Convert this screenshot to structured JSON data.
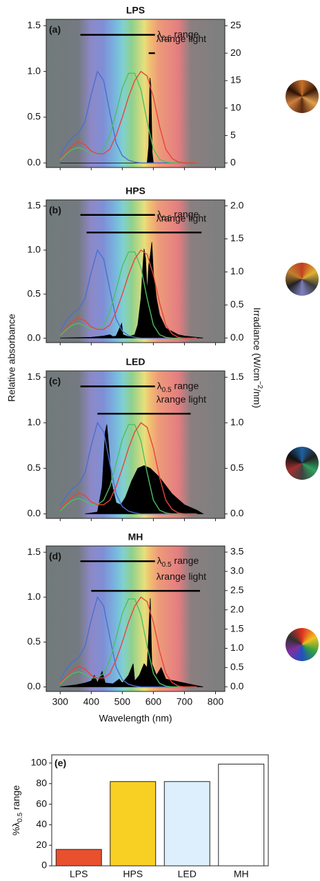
{
  "chart_data": [
    {
      "type": "line",
      "title": "LPS",
      "panel_label": "(a)",
      "xlim": [
        255,
        830
      ],
      "xticks": [
        300,
        400,
        500,
        600,
        700,
        800
      ],
      "ylim": [
        -0.05,
        1.57
      ],
      "yticks": [
        {
          "value": 0,
          "label": "0.0"
        },
        0.5,
        {
          "value": 1,
          "label": "1.0"
        },
        1.5
      ],
      "y2lim": [
        -0.83,
        26.17
      ],
      "y2ticks": [
        0,
        5,
        10,
        15,
        20,
        25
      ],
      "x": [
        300,
        320,
        340,
        360,
        380,
        400,
        420,
        440,
        460,
        480,
        500,
        520,
        540,
        560,
        580,
        600,
        620,
        640,
        660,
        680,
        700,
        720,
        740
      ],
      "series": [
        {
          "color": "#000000",
          "axis": "y2",
          "fill": true,
          "x": [
            300,
            580,
            585,
            589,
            592,
            596,
            600,
            740
          ],
          "values": [
            0,
            0,
            3,
            15.5,
            14,
            2,
            0,
            0
          ]
        },
        {
          "color": "#4a6fd0",
          "values": [
            0.08,
            0.2,
            0.28,
            0.33,
            0.45,
            0.75,
            1.0,
            0.9,
            0.55,
            0.22,
            0.08,
            0.03,
            0.01,
            0,
            0,
            0,
            0,
            0,
            0,
            0,
            0,
            0,
            0
          ]
        },
        {
          "color": "#4cc060",
          "values": [
            0.03,
            0.1,
            0.15,
            0.17,
            0.14,
            0.1,
            0.1,
            0.15,
            0.3,
            0.55,
            0.82,
            0.98,
            0.98,
            0.8,
            0.45,
            0.15,
            0.04,
            0.01,
            0,
            0,
            0,
            0,
            0
          ]
        },
        {
          "color": "#e8433a",
          "values": [
            0.05,
            0.12,
            0.19,
            0.23,
            0.2,
            0.13,
            0.1,
            0.1,
            0.15,
            0.3,
            0.5,
            0.72,
            0.9,
            1.0,
            0.95,
            0.72,
            0.4,
            0.15,
            0.05,
            0.01,
            0,
            0,
            0
          ]
        }
      ],
      "range_lines": [
        {
          "label": [
            "λ",
            "0.5",
            " range"
          ],
          "x": [
            365,
            605
          ],
          "y": 1.4
        },
        {
          "label": [
            "λrange light"
          ],
          "x": [
            585,
            605
          ],
          "y": 1.2
        }
      ]
    },
    {
      "type": "line",
      "title": "HPS",
      "panel_label": "(b)",
      "ylabel": "Relative absorbance",
      "y2label": [
        "Irradiance (W/cm",
        "−2",
        "/nm)"
      ],
      "xlim": [
        255,
        830
      ],
      "xticks": [
        300,
        400,
        500,
        600,
        700,
        800
      ],
      "ylim": [
        -0.05,
        1.57
      ],
      "yticks": [
        {
          "value": 0,
          "label": "0.0"
        },
        0.5,
        {
          "value": 1,
          "label": "1.0"
        },
        1.5
      ],
      "y2lim": [
        -0.07,
        2.09
      ],
      "y2ticks": [
        {
          "value": 0,
          "label": "0.0"
        },
        0.5,
        {
          "value": 1,
          "label": "1.0"
        },
        1.5,
        {
          "value": 2,
          "label": "2.0"
        }
      ],
      "x": [
        300,
        320,
        340,
        360,
        380,
        400,
        420,
        440,
        460,
        480,
        500,
        520,
        540,
        560,
        580,
        600,
        620,
        640,
        660,
        680,
        700,
        720,
        740
      ],
      "series": [
        {
          "color": "#000000",
          "axis": "y2",
          "fill": true,
          "x": [
            300,
            400,
            440,
            460,
            470,
            480,
            498,
            502,
            520,
            540,
            550,
            560,
            565,
            570,
            575,
            580,
            585,
            590,
            595,
            600,
            610,
            620,
            640,
            660,
            680,
            700,
            760
          ],
          "values": [
            0,
            0.01,
            0.03,
            0.05,
            0.02,
            0.03,
            0.22,
            0.05,
            0.02,
            0.05,
            0.2,
            0.6,
            1.0,
            1.35,
            1.2,
            0.7,
            1.1,
            1.25,
            1.45,
            1.0,
            0.6,
            0.35,
            0.15,
            0.1,
            0.05,
            0.03,
            0
          ]
        },
        {
          "color": "#4a6fd0",
          "values": [
            0.08,
            0.2,
            0.28,
            0.33,
            0.45,
            0.75,
            1.0,
            0.9,
            0.55,
            0.22,
            0.08,
            0.03,
            0.01,
            0,
            0,
            0,
            0,
            0,
            0,
            0,
            0,
            0,
            0
          ]
        },
        {
          "color": "#4cc060",
          "values": [
            0.03,
            0.1,
            0.15,
            0.17,
            0.14,
            0.1,
            0.1,
            0.15,
            0.3,
            0.55,
            0.82,
            0.98,
            0.98,
            0.8,
            0.45,
            0.15,
            0.04,
            0.01,
            0,
            0,
            0,
            0,
            0
          ]
        },
        {
          "color": "#e8433a",
          "values": [
            0.05,
            0.12,
            0.19,
            0.23,
            0.2,
            0.13,
            0.1,
            0.1,
            0.15,
            0.3,
            0.5,
            0.72,
            0.9,
            1.0,
            0.95,
            0.72,
            0.4,
            0.15,
            0.05,
            0.01,
            0,
            0,
            0
          ]
        }
      ],
      "range_lines": [
        {
          "label": [
            "λ",
            "0.5",
            " range"
          ],
          "x": [
            365,
            605
          ],
          "y": 1.4
        },
        {
          "label": [
            "λrange light"
          ],
          "x": [
            385,
            755
          ],
          "y": 1.2
        }
      ]
    },
    {
      "type": "line",
      "title": "LED",
      "panel_label": "(c)",
      "xlim": [
        255,
        830
      ],
      "xticks": [
        300,
        400,
        500,
        600,
        700,
        800
      ],
      "ylim": [
        -0.05,
        1.57
      ],
      "yticks": [
        {
          "value": 0,
          "label": "0.0"
        },
        0.5,
        {
          "value": 1,
          "label": "1.0"
        },
        1.5
      ],
      "y2lim": [
        -0.05,
        1.57
      ],
      "y2ticks": [
        {
          "value": 0,
          "label": "0.0"
        },
        0.5,
        {
          "value": 1,
          "label": "1.0"
        },
        1.5
      ],
      "x": [
        300,
        320,
        340,
        360,
        380,
        400,
        420,
        440,
        460,
        480,
        500,
        520,
        540,
        560,
        580,
        600,
        620,
        640,
        660,
        680,
        700,
        720,
        740
      ],
      "series": [
        {
          "color": "#000000",
          "axis": "y2",
          "fill": true,
          "x": [
            380,
            420,
            435,
            445,
            450,
            455,
            465,
            480,
            495,
            510,
            530,
            550,
            570,
            590,
            620,
            660,
            700,
            740,
            760
          ],
          "values": [
            0,
            0.02,
            0.3,
            0.9,
            0.98,
            0.8,
            0.35,
            0.12,
            0.1,
            0.18,
            0.36,
            0.5,
            0.53,
            0.5,
            0.4,
            0.22,
            0.1,
            0.04,
            0
          ]
        },
        {
          "color": "#4a6fd0",
          "values": [
            0.08,
            0.2,
            0.28,
            0.33,
            0.45,
            0.75,
            1.0,
            0.9,
            0.55,
            0.22,
            0.08,
            0.03,
            0.01,
            0,
            0,
            0,
            0,
            0,
            0,
            0,
            0,
            0,
            0
          ]
        },
        {
          "color": "#4cc060",
          "values": [
            0.03,
            0.1,
            0.15,
            0.17,
            0.14,
            0.1,
            0.1,
            0.15,
            0.3,
            0.55,
            0.82,
            0.98,
            0.98,
            0.8,
            0.45,
            0.15,
            0.04,
            0.01,
            0,
            0,
            0,
            0,
            0
          ]
        },
        {
          "color": "#e8433a",
          "values": [
            0.05,
            0.12,
            0.19,
            0.23,
            0.2,
            0.13,
            0.1,
            0.1,
            0.15,
            0.3,
            0.5,
            0.72,
            0.9,
            1.0,
            0.95,
            0.72,
            0.4,
            0.15,
            0.05,
            0.01,
            0,
            0,
            0
          ]
        }
      ],
      "range_lines": [
        {
          "label": [
            "λ",
            "0.5",
            " range"
          ],
          "x": [
            365,
            605
          ],
          "y": 1.4
        },
        {
          "label": [
            "λrange light"
          ],
          "x": [
            420,
            720
          ],
          "y": 1.1
        }
      ]
    },
    {
      "type": "line",
      "title": "MH",
      "panel_label": "(d)",
      "xlabel": "Wavelength (nm)",
      "xlim": [
        255,
        830
      ],
      "xticks": [
        300,
        400,
        500,
        600,
        700,
        800
      ],
      "ylim": [
        -0.05,
        1.57
      ],
      "yticks": [
        {
          "value": 0,
          "label": "0.0"
        },
        0.5,
        {
          "value": 1,
          "label": "1.0"
        },
        1.5
      ],
      "y2lim": [
        -0.12,
        3.66
      ],
      "y2ticks": [
        {
          "value": 0,
          "label": "0.0"
        },
        0.5,
        {
          "value": 1,
          "label": "1.0"
        },
        1.5,
        {
          "value": 2,
          "label": "2.0"
        },
        2.5,
        {
          "value": 3,
          "label": "3.0"
        },
        3.5
      ],
      "x": [
        300,
        320,
        340,
        360,
        380,
        400,
        420,
        440,
        460,
        480,
        500,
        520,
        540,
        560,
        580,
        600,
        620,
        640,
        660,
        680,
        700,
        720,
        740
      ],
      "series": [
        {
          "color": "#000000",
          "axis": "y2",
          "fill": true,
          "x": [
            300,
            350,
            380,
            400,
            410,
            420,
            435,
            445,
            470,
            490,
            500,
            520,
            535,
            540,
            555,
            570,
            580,
            590,
            595,
            610,
            625,
            640,
            670,
            700,
            740,
            760
          ],
          "values": [
            0,
            0.05,
            0.1,
            0.15,
            0.3,
            0.1,
            0.4,
            0.1,
            0.08,
            0.2,
            0.1,
            0.3,
            0.6,
            0.15,
            0.3,
            0.6,
            0.5,
            2.3,
            0.6,
            0.3,
            0.5,
            0.2,
            0.15,
            0.1,
            0.03,
            0
          ]
        },
        {
          "color": "#4a6fd0",
          "values": [
            0.08,
            0.2,
            0.28,
            0.33,
            0.45,
            0.75,
            1.0,
            0.9,
            0.55,
            0.22,
            0.08,
            0.03,
            0.01,
            0,
            0,
            0,
            0,
            0,
            0,
            0,
            0,
            0,
            0
          ]
        },
        {
          "color": "#4cc060",
          "values": [
            0.03,
            0.1,
            0.15,
            0.17,
            0.14,
            0.1,
            0.1,
            0.15,
            0.3,
            0.55,
            0.82,
            0.98,
            0.98,
            0.8,
            0.45,
            0.15,
            0.04,
            0.01,
            0,
            0,
            0,
            0,
            0
          ]
        },
        {
          "color": "#e8433a",
          "values": [
            0.05,
            0.12,
            0.19,
            0.23,
            0.2,
            0.13,
            0.1,
            0.1,
            0.15,
            0.3,
            0.5,
            0.72,
            0.9,
            1.0,
            0.95,
            0.72,
            0.4,
            0.15,
            0.05,
            0.01,
            0,
            0,
            0
          ]
        }
      ],
      "range_lines": [
        {
          "label": [
            "λ",
            "0.5",
            " range"
          ],
          "x": [
            365,
            605
          ],
          "y": 1.4
        },
        {
          "label": [
            "λrange light"
          ],
          "x": [
            400,
            750
          ],
          "y": 1.07
        }
      ]
    },
    {
      "type": "bar",
      "panel_label": "(e)",
      "ylabel": [
        "%λ",
        "0.5",
        " range"
      ],
      "categories": [
        "LPS",
        "HPS",
        "LED",
        "MH"
      ],
      "values": [
        16,
        82,
        82,
        99
      ],
      "colors": [
        "#e8502e",
        "#f8d024",
        "#ddeefc",
        "#ffffff"
      ],
      "ylim": [
        0,
        108
      ],
      "yticks": [
        0,
        20,
        40,
        60,
        80,
        100
      ]
    }
  ]
}
